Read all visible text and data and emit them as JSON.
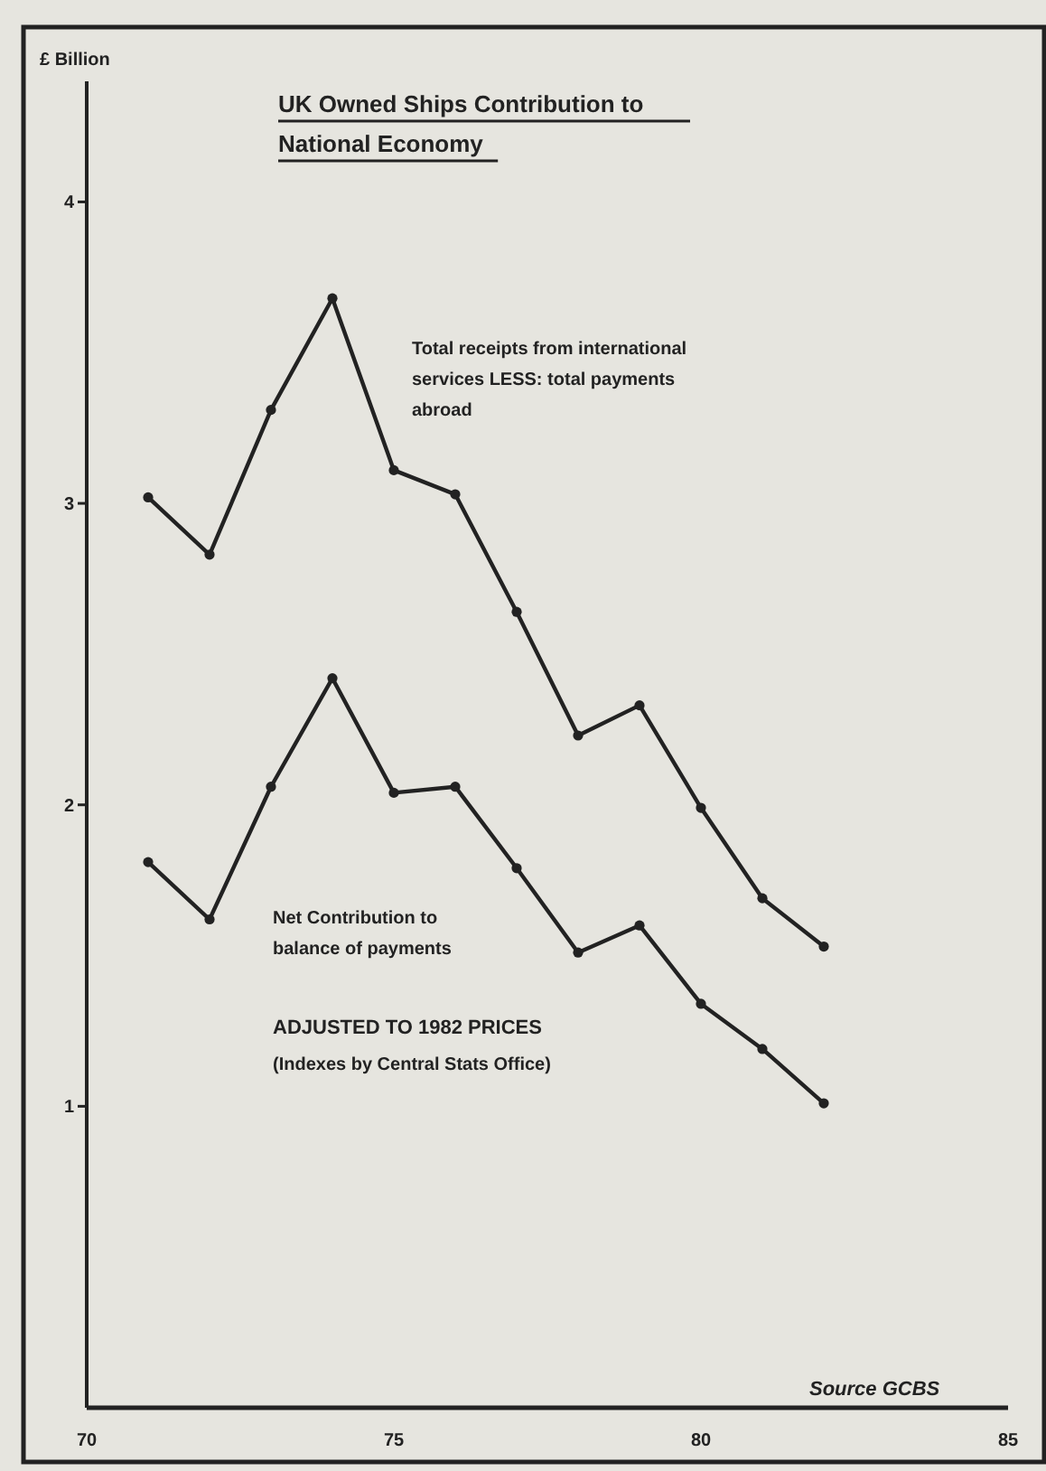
{
  "chart_data": {
    "type": "line",
    "title": "UK Owned Ships Contribution to National Economy",
    "ylabel": "£ Billion",
    "x": [
      71,
      72,
      73,
      74,
      75,
      76,
      77,
      78,
      79,
      80,
      81,
      82
    ],
    "series": [
      {
        "name": "Total receipts from international services LESS: total payments abroad",
        "color": "#222222",
        "values": [
          3.02,
          2.83,
          3.31,
          3.68,
          3.11,
          3.03,
          2.64,
          2.23,
          2.33,
          1.99,
          1.69,
          1.53
        ]
      },
      {
        "name": "Net Contribution to balance of payments",
        "color": "#222222",
        "values": [
          1.81,
          1.62,
          2.06,
          2.42,
          2.04,
          2.06,
          1.79,
          1.51,
          1.6,
          1.34,
          1.19,
          1.01
        ]
      }
    ],
    "xlim": [
      70,
      85
    ],
    "xticks": [
      70,
      75,
      80,
      85
    ],
    "ylim": [
      0,
      4.4
    ],
    "yticks": [
      1,
      2,
      3,
      4
    ],
    "grid": false,
    "marker": "circle",
    "line_style": "solid",
    "annotations": [
      "ADJUSTED TO 1982 PRICES",
      "(Indexes by Central Stats Office)",
      "Source GCBS"
    ]
  }
}
